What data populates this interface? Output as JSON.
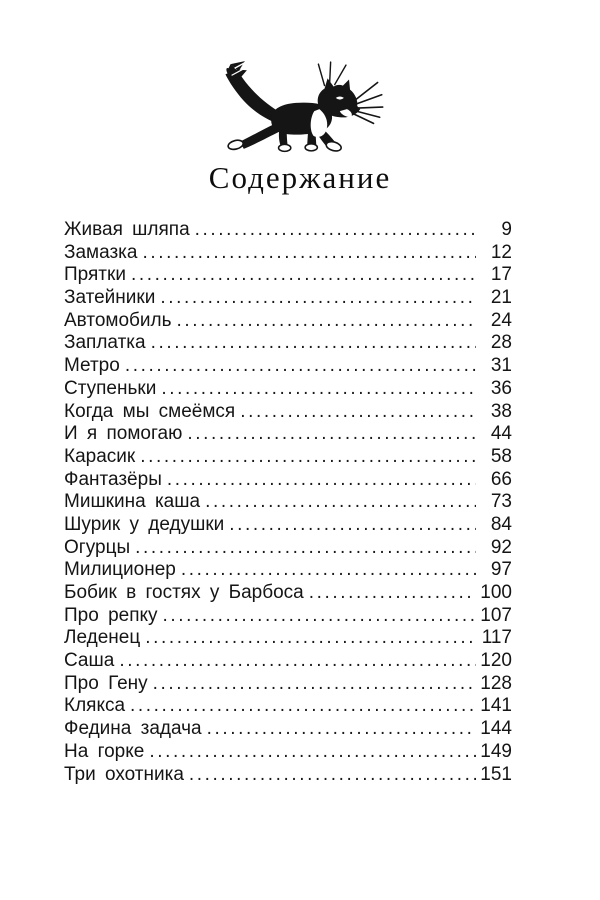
{
  "page": {
    "title": "Содержание",
    "illustration": "walking-cat-ink-drawing"
  },
  "toc": {
    "entries": [
      {
        "title": "Живая шляпа",
        "page": "9"
      },
      {
        "title": "Замазка",
        "page": "12"
      },
      {
        "title": "Прятки",
        "page": "17"
      },
      {
        "title": "Затейники",
        "page": "21"
      },
      {
        "title": "Автомобиль",
        "page": "24"
      },
      {
        "title": "Заплатка",
        "page": "28"
      },
      {
        "title": "Метро",
        "page": "31"
      },
      {
        "title": "Ступеньки",
        "page": "36"
      },
      {
        "title": "Когда мы смеёмся",
        "page": "38"
      },
      {
        "title": "И я помогаю",
        "page": "44"
      },
      {
        "title": "Карасик",
        "page": "58"
      },
      {
        "title": "Фантазёры",
        "page": "66"
      },
      {
        "title": "Мишкина каша",
        "page": "73"
      },
      {
        "title": "Шурик у дедушки",
        "page": "84"
      },
      {
        "title": "Огурцы",
        "page": "92"
      },
      {
        "title": "Милиционер",
        "page": "97"
      },
      {
        "title": "Бобик в гостях у Барбоса",
        "page": "100"
      },
      {
        "title": "Про репку",
        "page": "107"
      },
      {
        "title": "Леденец",
        "page": "117"
      },
      {
        "title": "Саша",
        "page": "120"
      },
      {
        "title": "Про Гену",
        "page": "128"
      },
      {
        "title": "Клякса",
        "page": "141"
      },
      {
        "title": "Федина задача",
        "page": "144"
      },
      {
        "title": "На горке",
        "page": "149"
      },
      {
        "title": "Три охотника",
        "page": "151"
      }
    ]
  }
}
